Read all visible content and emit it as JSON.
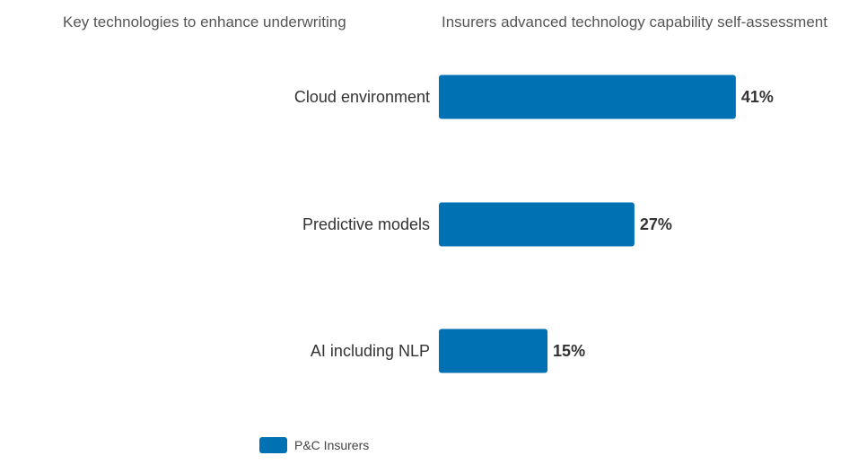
{
  "header": {
    "left_title": "Key technologies to enhance underwriting",
    "right_title": "Insurers advanced technology capability self-assessment"
  },
  "colors": {
    "bar": "#0071b3"
  },
  "chart_data": {
    "type": "bar",
    "orientation": "horizontal",
    "categories": [
      "Cloud environment",
      "Predictive models",
      "AI including NLP"
    ],
    "series": [
      {
        "name": "P&C Insurers",
        "values": [
          41,
          27,
          15
        ],
        "value_labels": [
          "41%",
          "27%",
          "15%"
        ]
      }
    ],
    "xlim": [
      0,
      55
    ],
    "grid": false,
    "legend_position": "bottom-left"
  },
  "legend": {
    "items": [
      "P&C Insurers"
    ]
  }
}
